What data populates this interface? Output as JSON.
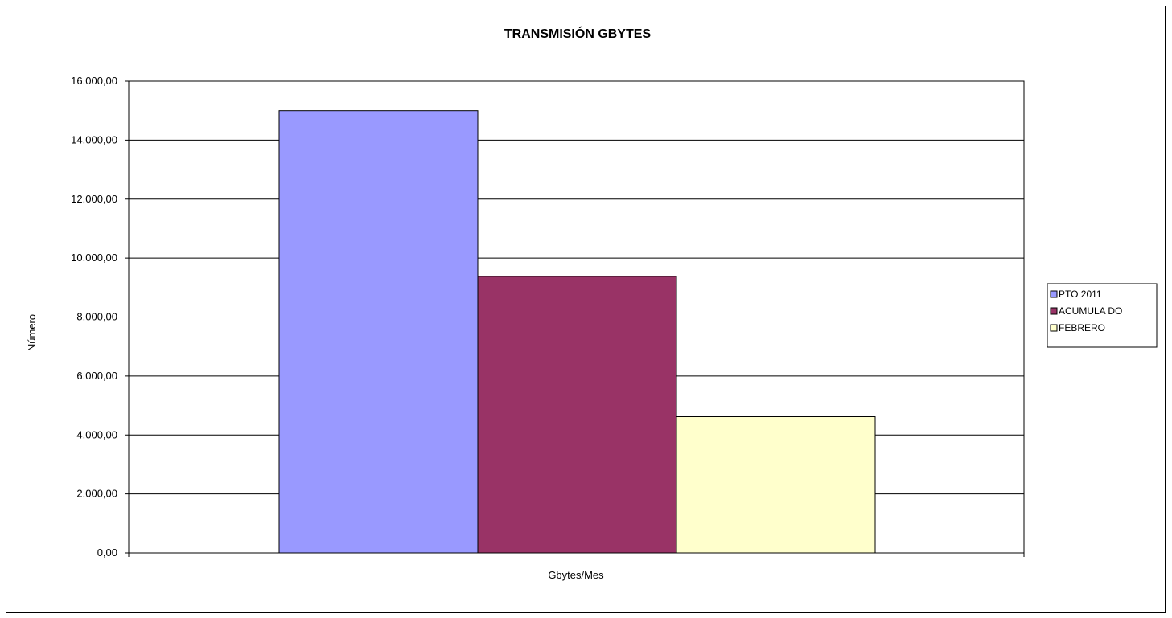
{
  "chart_data": {
    "type": "bar",
    "title": "TRANSMISIÓN GBYTES",
    "xlabel": "Gbytes/Mes",
    "ylabel": "Número",
    "categories": [
      "Gbytes/Mes"
    ],
    "series": [
      {
        "name": "PTO  2011",
        "values": [
          15000
        ],
        "color": "#9999FF"
      },
      {
        "name": "ACUMULA DO",
        "values": [
          9380
        ],
        "color": "#993366"
      },
      {
        "name": "FEBRERO",
        "values": [
          4620
        ],
        "color": "#FFFFCC"
      }
    ],
    "ylim": [
      0,
      16000
    ],
    "yticks": [
      "0,00",
      "2.000,00",
      "4.000,00",
      "6.000,00",
      "8.000,00",
      "10.000,00",
      "12.000,00",
      "14.000,00",
      "16.000,00"
    ],
    "grid": true,
    "legend_position": "right"
  }
}
